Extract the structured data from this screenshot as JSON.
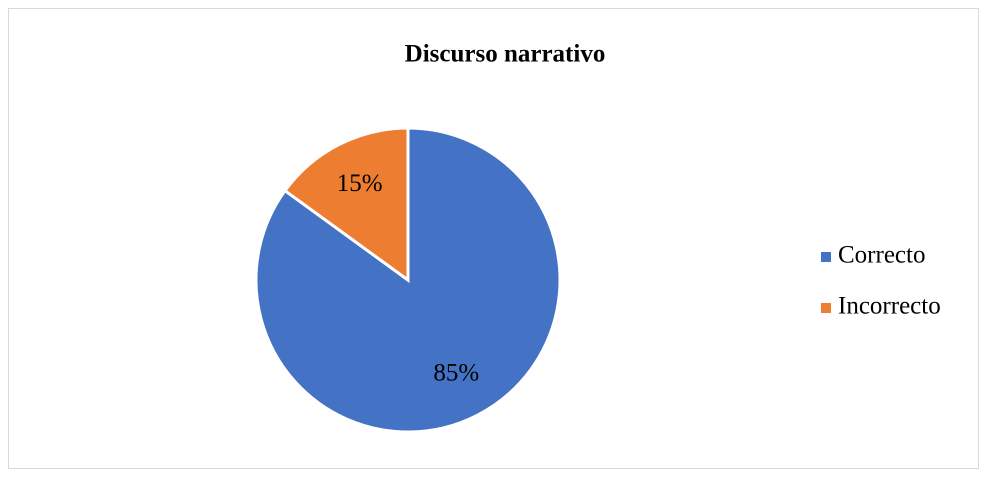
{
  "chart_data": {
    "type": "pie",
    "title": "Discurso narrativo",
    "categories": [
      "Correcto",
      "Incorrecto"
    ],
    "values": [
      85,
      15
    ],
    "value_labels": [
      "85%",
      "15%"
    ],
    "colors": [
      "#4472c4",
      "#ed7d31"
    ],
    "legend": "right"
  }
}
